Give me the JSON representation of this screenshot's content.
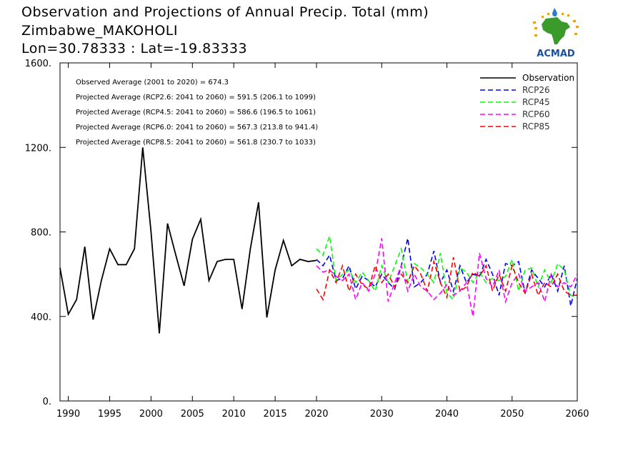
{
  "title": {
    "line1": "Observation and Projections of Annual Precip. Total (mm)",
    "line2": "Zimbabwe_MAKOHOLI",
    "line3": "Lon=30.78333 : Lat=-19.83333"
  },
  "logo": {
    "text": "ACMAD",
    "icon": "africa-map-raindrop-icon"
  },
  "colors": {
    "Observation": "#000000",
    "RCP26": "#0000ff",
    "RCP45": "#00ff00",
    "RCP60": "#ff00ff",
    "RCP85": "#ff0000"
  },
  "chart_data": {
    "type": "line",
    "title": "Observation and Projections of Annual Precip. Total (mm)",
    "xlabel": "",
    "ylabel": "",
    "xlim": [
      1989,
      2060
    ],
    "ylim": [
      0,
      1600
    ],
    "x_ticks": [
      "1990",
      "1995",
      "2000",
      "2005",
      "2010",
      "2015",
      "2020",
      "2030",
      "2040",
      "2050",
      "2060"
    ],
    "y_ticks": [
      "0.",
      "400.",
      "800.",
      "1200.",
      "1600."
    ],
    "legend_position": "top-right",
    "grid": false,
    "annotations": [
      "Observed Average (2001 to 2020) = 674.3",
      "Projected Average (RCP2.6: 2041 to 2060) = 591.5 (206.1 to 1099)",
      "Projected Average (RCP4.5: 2041 to 2060) = 586.6 (196.5 to 1061)",
      "Projected Average (RCP6.0: 2041 to 2060) = 567.3 (213.8 to 941.4)",
      "Projected Average (RCP8.5: 2041 to 2060) = 561.8 (230.7 to 1033)"
    ],
    "series": [
      {
        "name": "Observation",
        "style": "solid",
        "x": [
          1989,
          1990,
          1991,
          1992,
          1993,
          1994,
          1995,
          1996,
          1997,
          1998,
          1999,
          2000,
          2001,
          2002,
          2003,
          2004,
          2005,
          2006,
          2007,
          2008,
          2009,
          2010,
          2011,
          2012,
          2013,
          2014,
          2015,
          2016,
          2017,
          2018,
          2019,
          2020
        ],
        "values": [
          630,
          410,
          480,
          730,
          385,
          570,
          720,
          645,
          645,
          720,
          1200,
          800,
          320,
          840,
          690,
          545,
          765,
          860,
          570,
          660,
          670,
          670,
          435,
          720,
          940,
          395,
          620,
          760,
          640,
          670,
          660,
          665
        ]
      },
      {
        "name": "RCP26",
        "style": "dashed",
        "x": [
          2020,
          2021,
          2022,
          2023,
          2024,
          2025,
          2026,
          2027,
          2028,
          2029,
          2030,
          2031,
          2032,
          2033,
          2034,
          2035,
          2036,
          2037,
          2038,
          2039,
          2040,
          2041,
          2042,
          2043,
          2044,
          2045,
          2046,
          2047,
          2048,
          2049,
          2050,
          2051,
          2052,
          2053,
          2054,
          2055,
          2056,
          2057,
          2058,
          2059,
          2060
        ],
        "values": [
          670,
          640,
          690,
          570,
          580,
          640,
          530,
          590,
          570,
          540,
          600,
          560,
          530,
          640,
          770,
          540,
          560,
          600,
          710,
          560,
          620,
          520,
          640,
          560,
          600,
          590,
          670,
          600,
          500,
          650,
          640,
          660,
          510,
          620,
          580,
          540,
          600,
          520,
          640,
          450,
          580
        ]
      },
      {
        "name": "RCP45",
        "style": "dashed",
        "x": [
          2020,
          2021,
          2022,
          2023,
          2024,
          2025,
          2026,
          2027,
          2028,
          2029,
          2030,
          2031,
          2032,
          2033,
          2034,
          2035,
          2036,
          2037,
          2038,
          2039,
          2040,
          2041,
          2042,
          2043,
          2044,
          2045,
          2046,
          2047,
          2048,
          2049,
          2050,
          2051,
          2052,
          2053,
          2054,
          2055,
          2056,
          2057,
          2058,
          2059,
          2060
        ],
        "values": [
          720,
          690,
          780,
          570,
          600,
          620,
          560,
          610,
          570,
          520,
          640,
          560,
          640,
          720,
          560,
          650,
          630,
          600,
          560,
          700,
          510,
          480,
          630,
          610,
          560,
          610,
          560,
          580,
          570,
          590,
          670,
          520,
          620,
          630,
          540,
          620,
          560,
          650,
          620,
          500,
          490
        ]
      },
      {
        "name": "RCP60",
        "style": "dashed",
        "x": [
          2020,
          2021,
          2022,
          2023,
          2024,
          2025,
          2026,
          2027,
          2028,
          2029,
          2030,
          2031,
          2032,
          2033,
          2034,
          2035,
          2036,
          2037,
          2038,
          2039,
          2040,
          2041,
          2042,
          2043,
          2044,
          2045,
          2046,
          2047,
          2048,
          2049,
          2050,
          2051,
          2052,
          2053,
          2054,
          2055,
          2056,
          2057,
          2058,
          2059,
          2060
        ],
        "values": [
          640,
          610,
          620,
          590,
          570,
          600,
          480,
          560,
          520,
          600,
          770,
          470,
          560,
          640,
          520,
          600,
          540,
          520,
          480,
          510,
          550,
          500,
          520,
          560,
          400,
          700,
          580,
          540,
          620,
          470,
          560,
          600,
          520,
          540,
          560,
          470,
          600,
          540,
          560,
          540,
          600
        ]
      },
      {
        "name": "RCP85",
        "style": "dashed",
        "x": [
          2020,
          2021,
          2022,
          2023,
          2024,
          2025,
          2026,
          2027,
          2028,
          2029,
          2030,
          2031,
          2032,
          2033,
          2034,
          2035,
          2036,
          2037,
          2038,
          2039,
          2040,
          2041,
          2042,
          2043,
          2044,
          2045,
          2046,
          2047,
          2048,
          2049,
          2050,
          2051,
          2052,
          2053,
          2054,
          2055,
          2056,
          2057,
          2058,
          2059,
          2060
        ],
        "values": [
          530,
          480,
          620,
          560,
          640,
          520,
          600,
          550,
          530,
          640,
          560,
          600,
          540,
          600,
          560,
          640,
          600,
          520,
          660,
          560,
          490,
          680,
          520,
          540,
          610,
          590,
          640,
          520,
          600,
          520,
          640,
          560,
          510,
          600,
          500,
          560,
          540,
          600,
          520,
          500,
          500
        ]
      }
    ]
  }
}
